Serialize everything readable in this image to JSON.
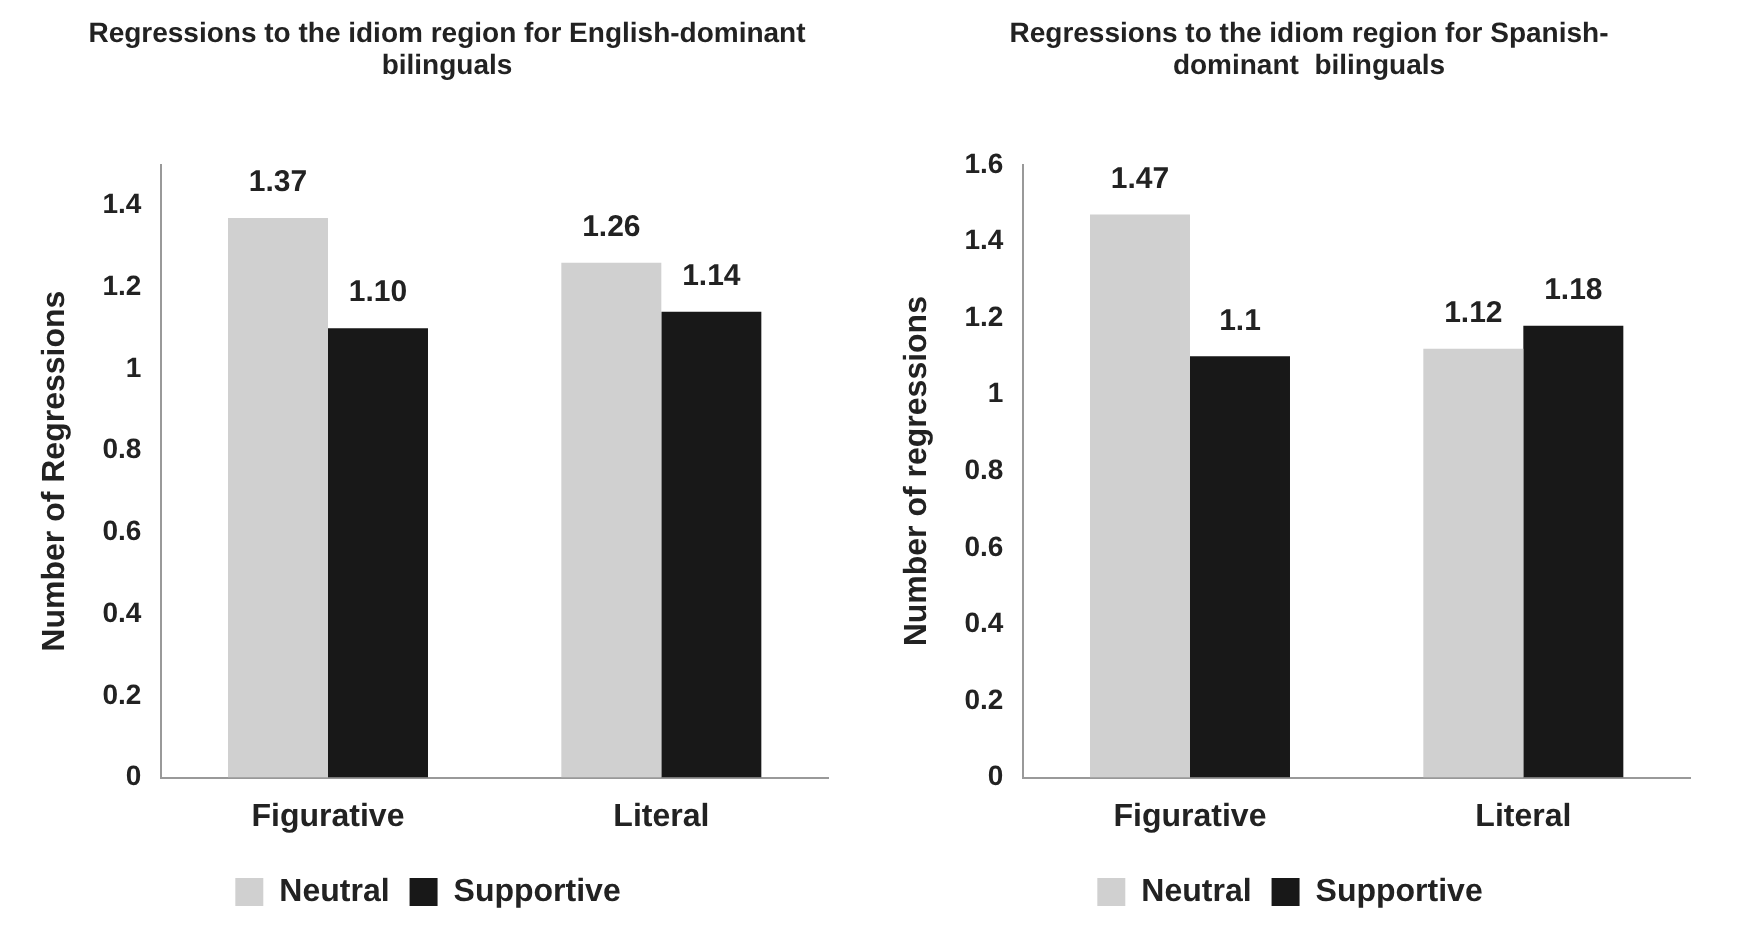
{
  "chart_data": [
    {
      "type": "bar",
      "title": "Regressions to the idiom region for English-dominant bilinguals",
      "ylabel": "Number of Regressions",
      "categories": [
        "Figurative",
        "Literal"
      ],
      "ylim": [
        0,
        1.5
      ],
      "yticks": [
        0,
        0.2,
        0.4,
        0.6,
        0.8,
        1,
        1.2,
        1.4
      ],
      "grid": false,
      "legend": "bottom",
      "series": [
        {
          "name": "Neutral",
          "color": "#d0d0d0",
          "values": [
            1.37,
            1.26
          ],
          "value_labels": [
            "1.37",
            "1.26"
          ]
        },
        {
          "name": "Supportive",
          "color": "#181818",
          "values": [
            1.1,
            1.14
          ],
          "value_labels": [
            "1.10",
            "1.14"
          ]
        }
      ]
    },
    {
      "type": "bar",
      "title": "Regressions to the idiom region for Spanish-dominant  bilinguals",
      "ylabel": "Number of regressions",
      "categories": [
        "Figurative",
        "Literal"
      ],
      "ylim": [
        0,
        1.6
      ],
      "yticks": [
        0,
        0.2,
        0.4,
        0.6,
        0.8,
        1,
        1.2,
        1.4,
        1.6
      ],
      "grid": false,
      "legend": "bottom",
      "series": [
        {
          "name": "Neutral",
          "color": "#d0d0d0",
          "values": [
            1.47,
            1.12
          ],
          "value_labels": [
            "1.47",
            "1.12"
          ]
        },
        {
          "name": "Supportive",
          "color": "#181818",
          "values": [
            1.1,
            1.18
          ],
          "value_labels": [
            "1.1",
            "1.18"
          ]
        }
      ]
    }
  ]
}
